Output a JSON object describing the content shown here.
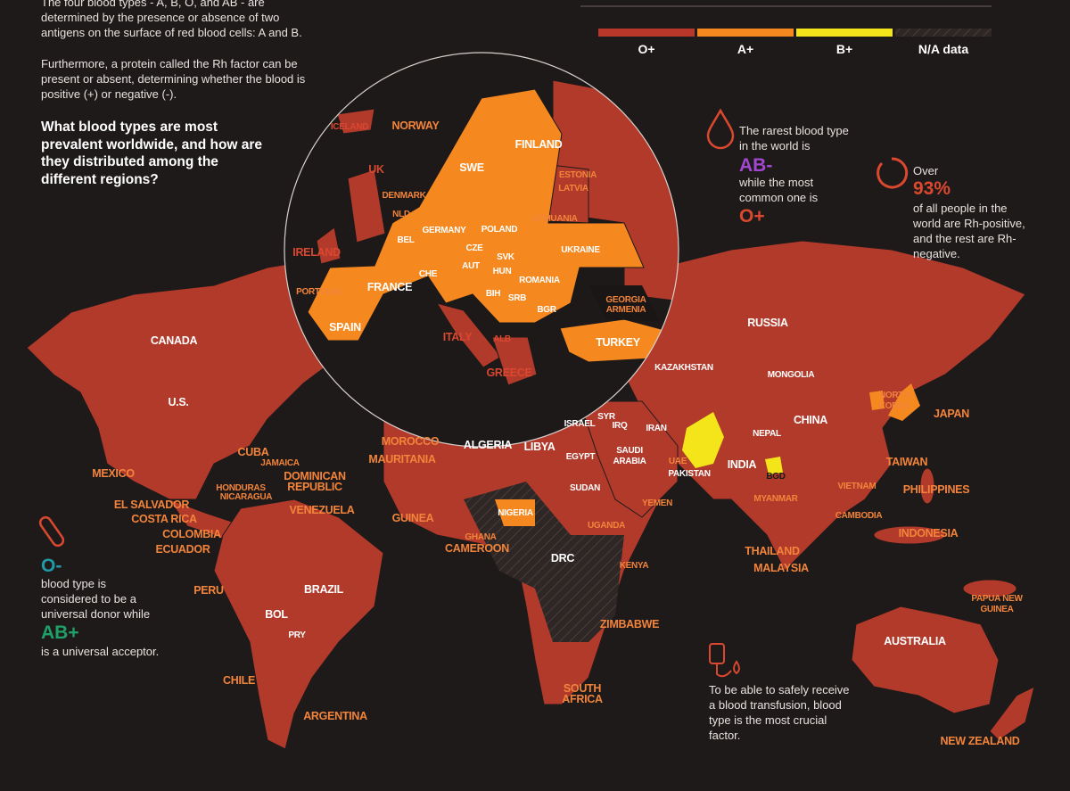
{
  "intro": {
    "paragraph_1": "The four blood types - A, B, O, and AB - are determined by the presence or absence of two antigens on the surface of red blood cells: A and B.",
    "paragraph_2": "Furthermore, a protein called  the Rh factor can be present or absent, determining whether the blood is positive (+) or negative (-).",
    "question": "What blood types are most prevalent worldwide, and how are they distributed among the different regions?"
  },
  "legend": [
    {
      "label": "O+",
      "color": "#b8372a"
    },
    {
      "label": "A+",
      "color": "#f5891f"
    },
    {
      "label": "B+",
      "color": "#f3e51a"
    },
    {
      "label": "N/A data",
      "color": "#2e2726",
      "pattern": "hatch"
    }
  ],
  "callouts": {
    "rarest": {
      "text_1": "The rarest blood type in the world is",
      "highlight_1": "AB-",
      "text_2": "while the most common one is",
      "highlight_2": "O+"
    },
    "rh_positive": {
      "text_1": "Over",
      "highlight": "93%",
      "text_2": "of all people in the world are Rh-positive, and the rest are Rh-negative."
    },
    "donor": {
      "highlight_1": "O-",
      "text_1": "blood type is considered to be a universal donor while",
      "highlight_2": "AB+",
      "text_2": "is a universal acceptor."
    },
    "transfusion": {
      "text": "To be able to safely receive a blood transfusion, blood type is the most crucial factor."
    }
  },
  "map": {
    "labels": [
      "ICELAND",
      "NORWAY",
      "UK",
      "FINLAND",
      "SWE",
      "ESTONIA",
      "LATVIA",
      "DENMARK",
      "NLD",
      "LITHUANIA",
      "BEL",
      "GERMANY",
      "POLAND",
      "IRELAND",
      "CZE",
      "SVK",
      "UKRAINE",
      "AUT",
      "HUN",
      "CHE",
      "FRANCE",
      "ROMANIA",
      "PORTUGAL",
      "BIH",
      "SRB",
      "BGR",
      "GEORGIA",
      "ARMENIA",
      "SPAIN",
      "ITALY",
      "ALB",
      "TURKEY",
      "GREECE",
      "CANADA",
      "U.S.",
      "CUBA",
      "JAMAICA",
      "DOMINICAN REPUBLIC",
      "MEXICO",
      "HONDURAS",
      "NICARAGUA",
      "EL SALVADOR",
      "VENEZUELA",
      "COSTA RICA",
      "COLOMBIA",
      "ECUADOR",
      "PERU",
      "BRAZIL",
      "BOL",
      "PRY",
      "CHILE",
      "ARGENTINA",
      "MOROCCO",
      "MAURITANIA",
      "ALGERIA",
      "LIBYA",
      "EGYPT",
      "SUDAN",
      "GUINEA",
      "NIGERIA",
      "GHANA",
      "CAMEROON",
      "UGANDA",
      "DRC",
      "KENYA",
      "ZIMBABWE",
      "SOUTH AFRICA",
      "ISRAEL",
      "SYR",
      "IRQ",
      "IRAN",
      "SAUDI ARABIA",
      "UAE",
      "YEMEN",
      "PAKISTAN",
      "KAZAKHSTAN",
      "RUSSIA",
      "MONGOLIA",
      "CHINA",
      "NEPAL",
      "INDIA",
      "BGD",
      "MYANMAR",
      "VIETNAM",
      "CAMBODIA",
      "THAILAND",
      "MALAYSIA",
      "NORTH KOREA",
      "JAPAN",
      "TAIWAN",
      "PHILIPPINES",
      "INDONESIA",
      "PAPUA NEW GUINEA",
      "AUSTRALIA",
      "NEW ZEALAND"
    ]
  }
}
